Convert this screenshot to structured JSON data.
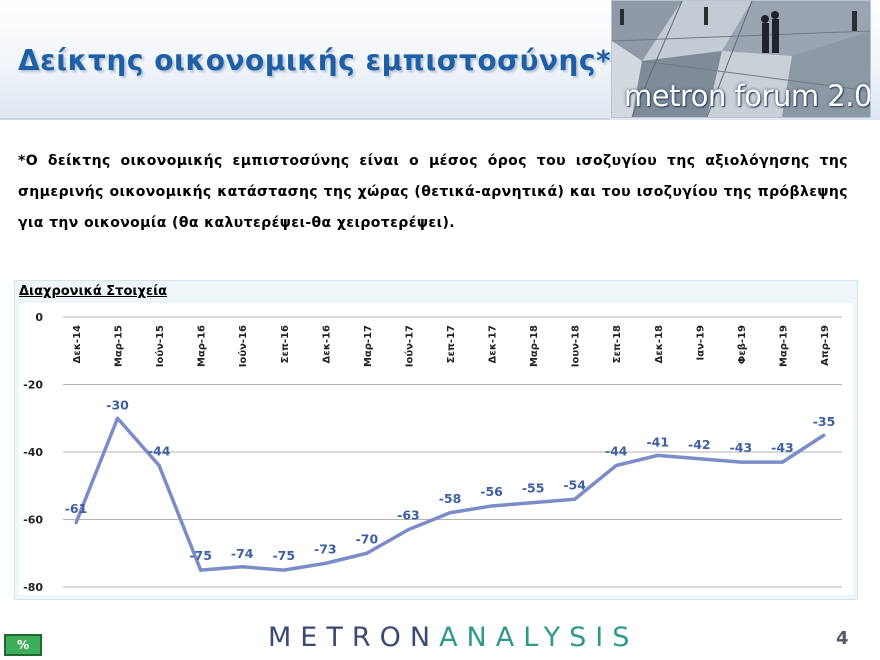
{
  "header": {
    "title": "Δείκτης οικονομικής εμπιστοσύνης*",
    "logo_text": "metron forum 2.0"
  },
  "note": "*Ο δείκτης οικονομικής εμπιστοσύνης είναι ο μέσος όρος του ισοζυγίου της αξιολόγησης της σημερινής οικονομικής κατάστασης της χώρας (θετικά-αρνητικά) και του ισοζυγίου της πρόβλεψης για την οικονομία (θα καλυτερέψει-θα χειροτερέψει).",
  "chart_section_label": "Διαχρονικά Στοιχεία",
  "chart_data": {
    "type": "line",
    "categories": [
      "Δεκ-14",
      "Μαρ-15",
      "Ιούν-15",
      "Μαρ-16",
      "Ιούν-16",
      "Σεπ-16",
      "Δεκ-16",
      "Μαρ-17",
      "Ιούν-17",
      "Σεπ-17",
      "Δεκ-17",
      "Μαρ-18",
      "Ιουν-18",
      "Σεπ-18",
      "Δεκ-18",
      "Ιαν-19",
      "Φεβ-19",
      "Μαρ-19",
      "Απρ-19"
    ],
    "values": [
      -61,
      -30,
      -44,
      -75,
      -74,
      -75,
      -73,
      -70,
      -63,
      -58,
      -56,
      -55,
      -54,
      -44,
      -41,
      -42,
      -43,
      -43,
      -35
    ],
    "ylim": [
      -80,
      0
    ],
    "yticks": [
      0,
      -20,
      -40,
      -60,
      -80
    ],
    "grid": true,
    "line_color": "#7b8cc8",
    "label_color": "#3f5fa3"
  },
  "footer": {
    "brand_part1": "METRON",
    "brand_part2": "ANALYSIS",
    "page_number": "4",
    "pct_button": "%"
  },
  "colors": {
    "title": "#1f5fa6",
    "brand_dark": "#3b4a73",
    "brand_teal": "#2e9a8a",
    "button_green": "#3fae5a"
  }
}
